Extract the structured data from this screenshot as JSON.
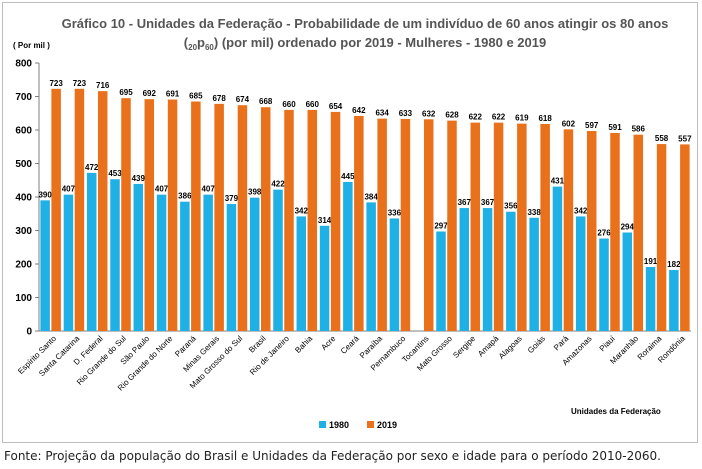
{
  "chart_data": {
    "type": "bar",
    "title_line1": "Gráfico 10 - Unidades da Federação - Probabilidade de um indivíduo de 60 anos atingir os 80 anos",
    "title_line2_prefix": "(",
    "title_line2_sub1": "20",
    "title_line2_mid": "p",
    "title_line2_sub2": "60",
    "title_line2_suffix": ") (por mil) ordenado por 2019 - Mulheres - 1980 e 2019",
    "ylabel": "( Por mil )",
    "xlabel": "Unidades da Federação",
    "ylim": [
      0,
      800
    ],
    "yticks": [
      0,
      100,
      200,
      300,
      400,
      500,
      600,
      700,
      800
    ],
    "grid": false,
    "legend_position": "bottom-left",
    "categories": [
      "Espírito Santo",
      "Santa Catarina",
      "D. Federal",
      "Rio Grande do Sul",
      "São Paulo",
      "Rio Grande do Norte",
      "Paraná",
      "Minas Gerais",
      "Mato Grosso do Sul",
      "Brasil",
      "Rio de Janeiro",
      "Bahia",
      "Acre",
      "Ceará",
      "Paraíba",
      "Pernambuco",
      "Tocantins",
      "Mato Grosso",
      "Sergipe",
      "Amapá",
      "Alagoas",
      "Goiás",
      "Pará",
      "Amazonas",
      "Piauí",
      "Maranhão",
      "Roraima",
      "Rondônia"
    ],
    "series": [
      {
        "name": "1980",
        "color": "#1fb1e6",
        "values": [
          390,
          407,
          472,
          453,
          439,
          407,
          386,
          407,
          379,
          398,
          422,
          342,
          314,
          445,
          384,
          336,
          null,
          297,
          367,
          367,
          356,
          338,
          431,
          342,
          276,
          294,
          191,
          182
        ]
      },
      {
        "name": "2019",
        "color": "#e9711c",
        "values": [
          723,
          723,
          716,
          695,
          692,
          691,
          685,
          678,
          674,
          668,
          660,
          660,
          654,
          642,
          634,
          633,
          632,
          628,
          622,
          622,
          619,
          618,
          602,
          597,
          591,
          586,
          558,
          557
        ]
      }
    ]
  },
  "source_text": "Fonte: Projeção da população do Brasil e Unidades da Federação por sexo e idade para o período 2010-2060."
}
